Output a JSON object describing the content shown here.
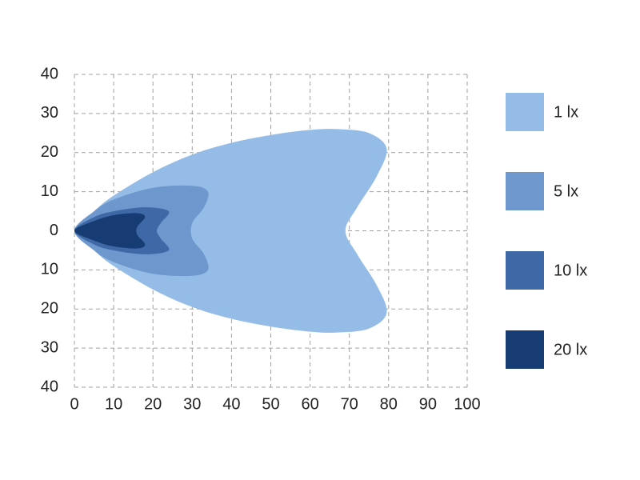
{
  "chart_data": {
    "type": "contour",
    "xlim": [
      0,
      100
    ],
    "xticks": [
      0,
      10,
      20,
      30,
      40,
      50,
      60,
      70,
      80,
      90,
      100
    ],
    "ylim": [
      -40,
      40
    ],
    "yticks": [
      {
        "value": -40,
        "label": "40"
      },
      {
        "value": -30,
        "label": "30"
      },
      {
        "value": -20,
        "label": "20"
      },
      {
        "value": -10,
        "label": "10"
      },
      0,
      10,
      20,
      30,
      40
    ],
    "grid": true,
    "legend": "right",
    "series": [
      {
        "name": "1 lx",
        "color": "#94bce6",
        "x": [
          0,
          5,
          10,
          20,
          30,
          40,
          50,
          60,
          67,
          75,
          79.5,
          77,
          72,
          69,
          72,
          77,
          79.5,
          75,
          67,
          60,
          50,
          40,
          30,
          20,
          10,
          5
        ],
        "y": [
          0,
          5,
          9,
          15,
          19.5,
          22.5,
          24.5,
          25.8,
          26,
          25,
          21,
          14,
          6,
          0,
          -6,
          -14,
          -21,
          -25,
          -26,
          -25.8,
          -24.5,
          -22.5,
          -19.5,
          -15,
          -9,
          -5
        ]
      },
      {
        "name": "5 lx",
        "color": "#6e98cd",
        "x": [
          0,
          5,
          10,
          20,
          30,
          34,
          33,
          30,
          30,
          33,
          34,
          30,
          20,
          10,
          5
        ],
        "y": [
          0,
          5,
          8,
          11,
          11.5,
          10,
          6,
          2,
          -2,
          -6,
          -10,
          -11.5,
          -11,
          -8,
          -5
        ]
      },
      {
        "name": "10 lx",
        "color": "#3f68a6",
        "x": [
          0,
          5,
          10,
          18,
          24,
          22,
          21,
          22,
          24,
          18,
          10,
          5
        ],
        "y": [
          0,
          3.5,
          5,
          6,
          5,
          2,
          0,
          -2,
          -5,
          -6,
          -5,
          -3.5
        ]
      },
      {
        "name": "20 lx",
        "color": "#173c74",
        "x": [
          0,
          5,
          10,
          16,
          18,
          16,
          16,
          18,
          16,
          10,
          5
        ],
        "y": [
          0,
          2.5,
          4,
          4.5,
          3.5,
          1,
          -1,
          -3.5,
          -4.5,
          -4,
          -2.5
        ]
      }
    ]
  }
}
